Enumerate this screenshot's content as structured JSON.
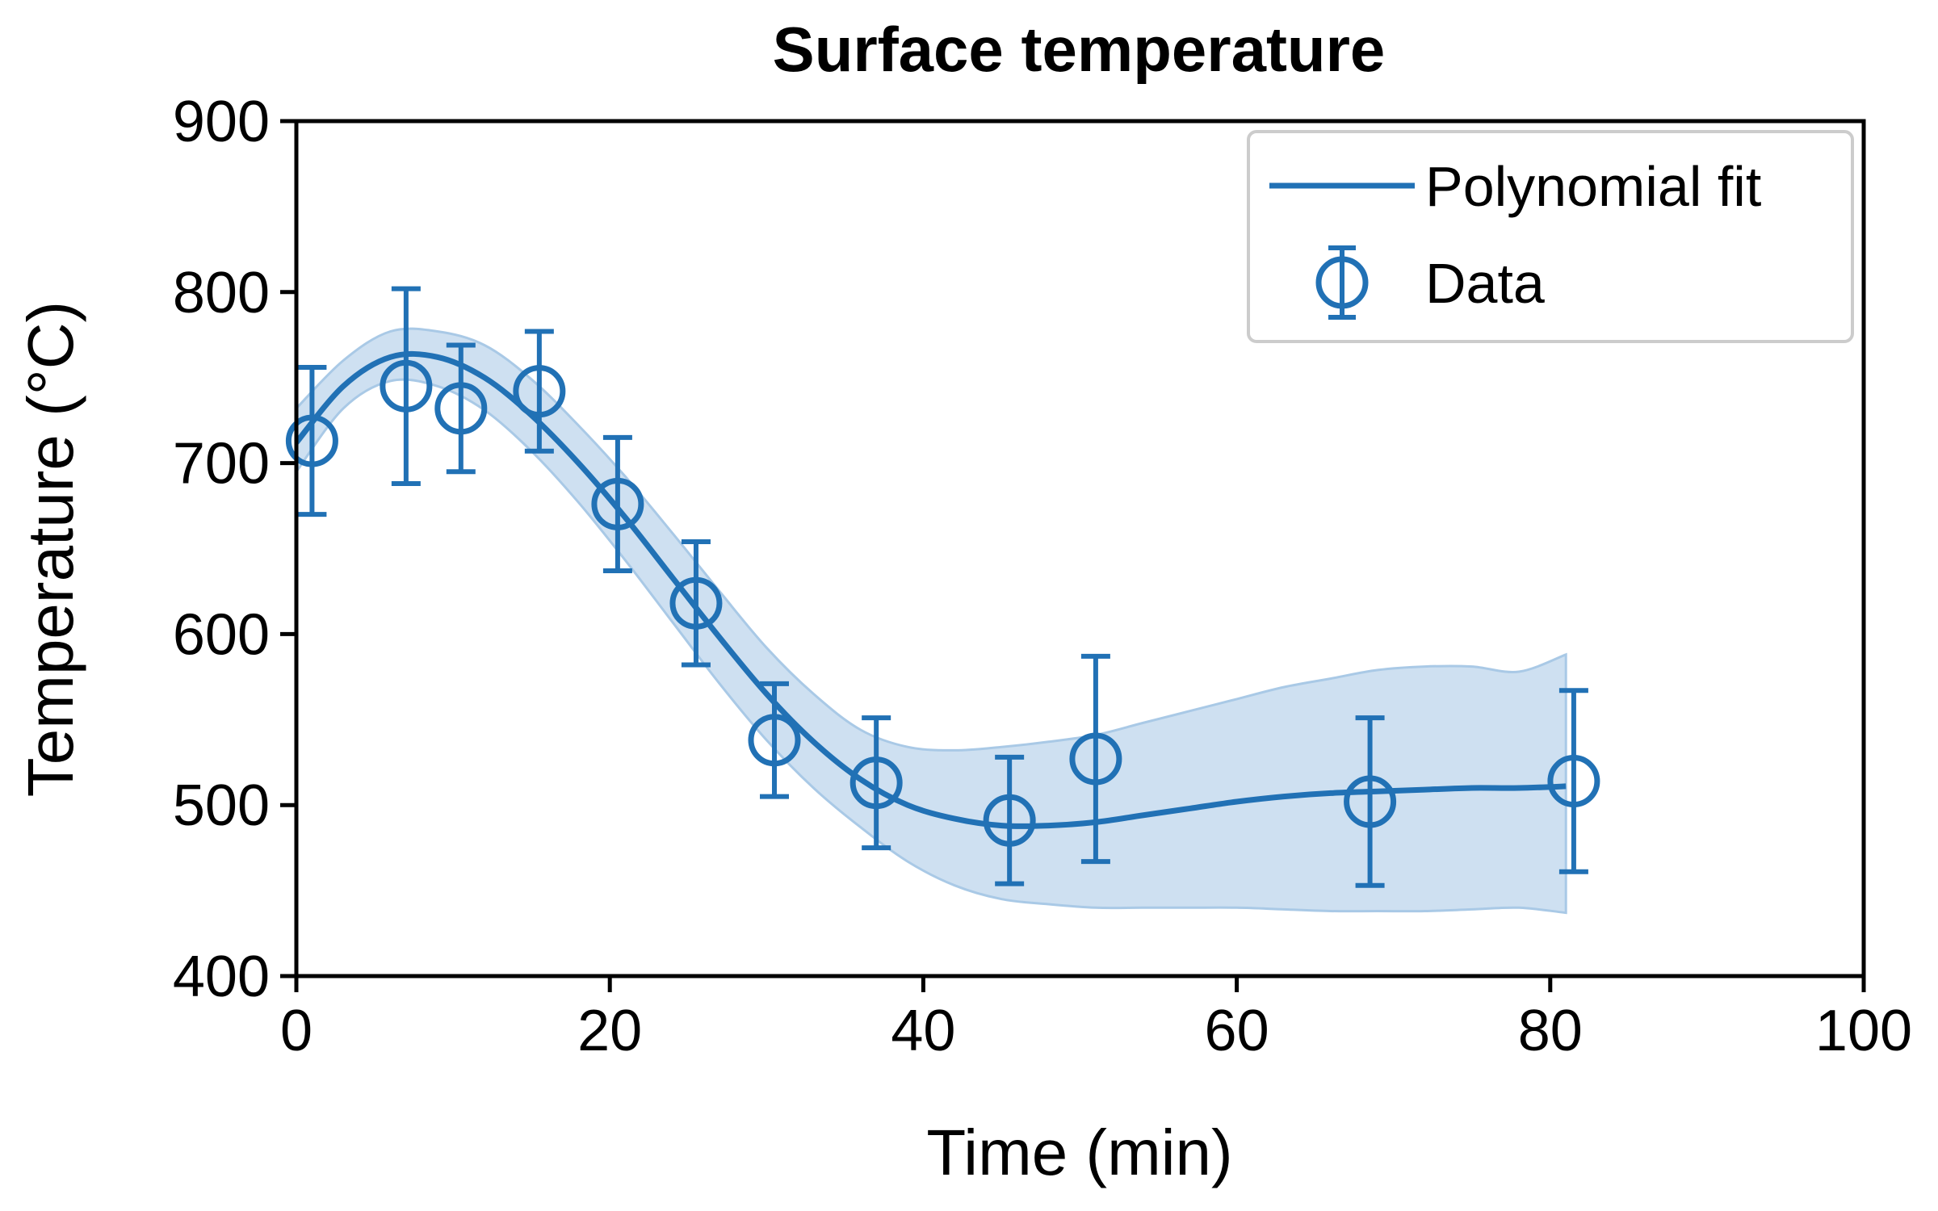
{
  "chart_data": {
    "type": "line",
    "title": "Surface temperature",
    "xlabel": "Time (min)",
    "ylabel": "Temperature (°C)",
    "xlim": [
      0,
      100
    ],
    "ylim": [
      400,
      900
    ],
    "xticks": [
      "0",
      "20",
      "40",
      "60",
      "80",
      "100"
    ],
    "yticks": [
      "400",
      "500",
      "600",
      "700",
      "800",
      "900"
    ],
    "grid": false,
    "legend_placement": "top-right",
    "color": "#2171b5",
    "band_color": "#c6dbef",
    "series": [
      {
        "name": "Polynomial fit",
        "kind": "line",
        "x": [
          0,
          3,
          6,
          9,
          12,
          15,
          18,
          21,
          24,
          27,
          30,
          33,
          36,
          39,
          42,
          45,
          48,
          51,
          54,
          57,
          60,
          63,
          66,
          69,
          72,
          75,
          78,
          81
        ],
        "y": [
          712,
          745,
          762,
          762,
          750,
          728,
          700,
          668,
          633,
          598,
          565,
          537,
          515,
          500,
          492,
          488,
          488,
          490,
          494,
          498,
          502,
          505,
          507,
          508,
          509,
          510,
          510,
          511
        ],
        "band_lower": [
          695,
          732,
          748,
          745,
          731,
          707,
          677,
          643,
          607,
          571,
          538,
          510,
          487,
          467,
          453,
          445,
          442,
          440,
          440,
          440,
          440,
          439,
          438,
          438,
          438,
          439,
          440,
          437
        ],
        "band_upper": [
          732,
          760,
          777,
          777,
          769,
          749,
          722,
          692,
          659,
          625,
          592,
          565,
          544,
          534,
          532,
          534,
          537,
          541,
          548,
          555,
          562,
          569,
          574,
          579,
          581,
          581,
          578,
          588
        ]
      },
      {
        "name": "Data",
        "kind": "errorbar",
        "x": [
          1,
          7,
          10.5,
          15.5,
          20.5,
          25.5,
          30.5,
          37,
          45.5,
          51,
          68.5,
          81.5
        ],
        "y": [
          713,
          745,
          732,
          742,
          676,
          618,
          538,
          513,
          491,
          527,
          502,
          514
        ],
        "err": [
          43,
          57,
          37,
          35,
          39,
          36,
          33,
          38,
          37,
          60,
          49,
          53
        ]
      }
    ]
  }
}
